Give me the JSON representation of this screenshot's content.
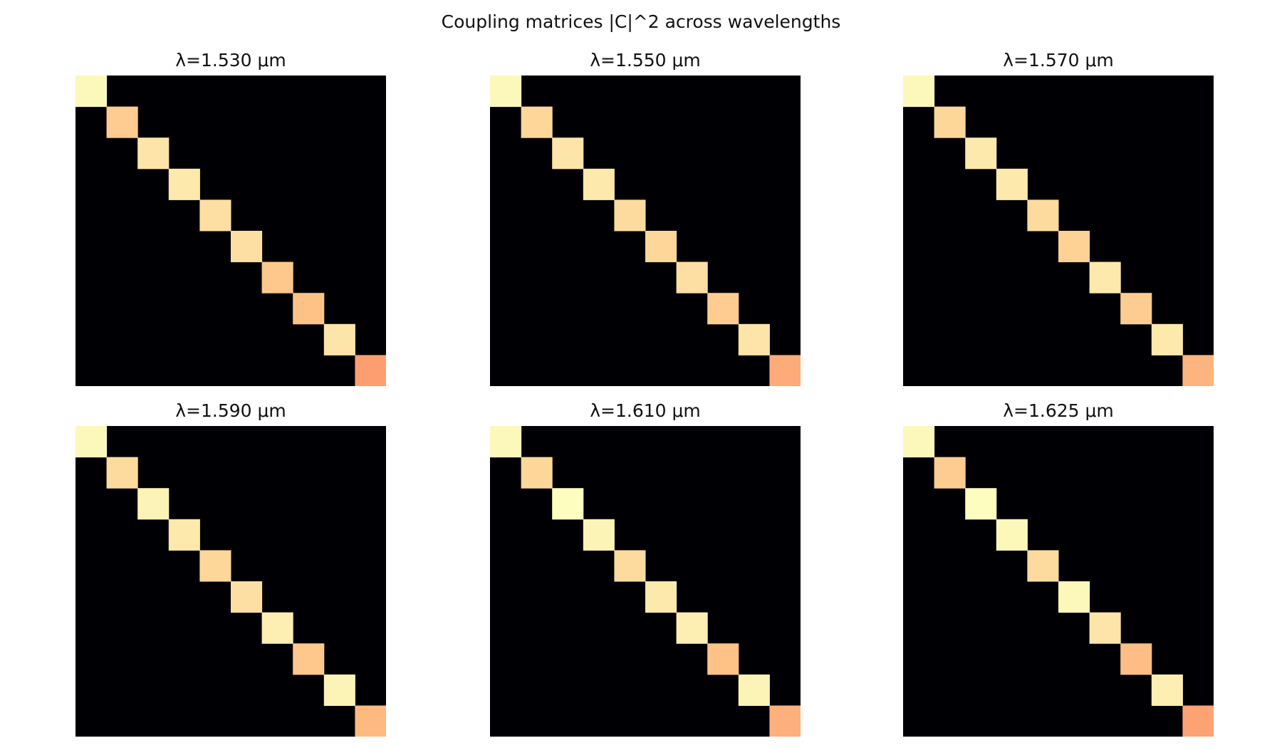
{
  "chart_data": {
    "type": "heatmap",
    "title": "Coupling matrices |C|^2 across wavelengths",
    "colormap": "magma",
    "vmin": 0,
    "vmax": 1,
    "size": 10,
    "panels": [
      {
        "title": "λ=1.530 μm",
        "diagonal": [
          0.99,
          0.9,
          0.95,
          0.96,
          0.94,
          0.94,
          0.89,
          0.88,
          0.95,
          0.8
        ]
      },
      {
        "title": "λ=1.550 μm",
        "diagonal": [
          0.99,
          0.92,
          0.95,
          0.96,
          0.93,
          0.92,
          0.94,
          0.9,
          0.95,
          0.83
        ]
      },
      {
        "title": "λ=1.570 μm",
        "diagonal": [
          0.99,
          0.92,
          0.96,
          0.96,
          0.93,
          0.91,
          0.96,
          0.9,
          0.96,
          0.85
        ]
      },
      {
        "title": "λ=1.590 μm",
        "diagonal": [
          0.99,
          0.93,
          0.98,
          0.96,
          0.92,
          0.94,
          0.97,
          0.89,
          0.98,
          0.86
        ]
      },
      {
        "title": "λ=1.610 μm",
        "diagonal": [
          0.99,
          0.92,
          1.0,
          0.98,
          0.93,
          0.96,
          0.97,
          0.88,
          0.98,
          0.84
        ]
      },
      {
        "title": "λ=1.625 μm",
        "diagonal": [
          0.99,
          0.9,
          1.0,
          0.99,
          0.93,
          0.99,
          0.95,
          0.87,
          0.97,
          0.81
        ]
      }
    ]
  }
}
